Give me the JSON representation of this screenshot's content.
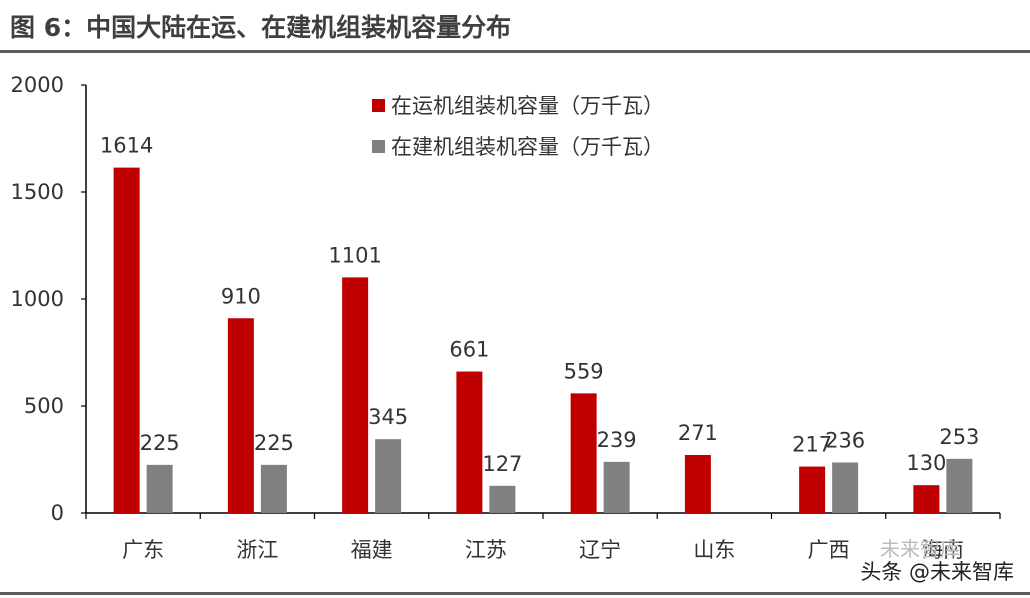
{
  "title": "图 6：中国大陆在运、在建机组装机容量分布",
  "watermark": "头条 @未来智库",
  "watermark_bg": "未来智库",
  "chart_data": {
    "type": "bar",
    "categories": [
      "广东",
      "浙江",
      "福建",
      "江苏",
      "辽宁",
      "山东",
      "广西",
      "海南"
    ],
    "series": [
      {
        "name": "在运机组装机容量（万千瓦）",
        "color": "#c00000",
        "values": [
          1614,
          910,
          1101,
          661,
          559,
          271,
          217,
          130
        ]
      },
      {
        "name": "在建机组装机容量（万千瓦）",
        "color": "#808080",
        "values": [
          225,
          225,
          345,
          127,
          239,
          null,
          236,
          253
        ]
      }
    ],
    "ylim": [
      0,
      2000
    ],
    "yticks": [
      0,
      500,
      1000,
      1500,
      2000
    ],
    "grid": false,
    "legend": "top-center"
  }
}
